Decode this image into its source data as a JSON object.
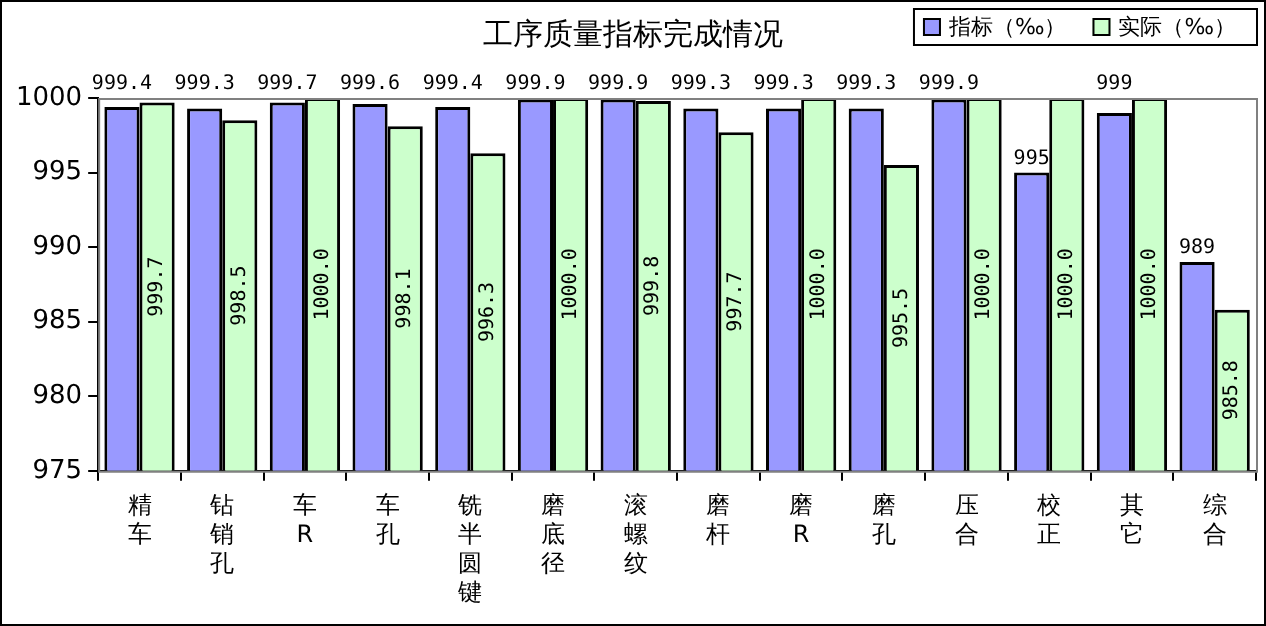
{
  "chart_data": {
    "type": "bar",
    "title": "工序质量指标完成情况",
    "categories": [
      "精车",
      "钻销孔",
      "车R",
      "车孔",
      "铣半圆键",
      "磨底径",
      "滚螺纹",
      "磨杆",
      "磨R",
      "磨孔",
      "压合",
      "校正",
      "其它",
      "综合"
    ],
    "series": [
      {
        "name": "指标（‰）",
        "color": "#9999ff",
        "values": [
          999.4,
          999.3,
          999.7,
          999.6,
          999.4,
          999.9,
          999.9,
          999.3,
          999.3,
          999.3,
          999.9,
          995,
          999,
          989
        ],
        "value_labels": [
          "999.4",
          "999.3",
          "999.7",
          "999.6",
          "999.4",
          "999.9",
          "999.9",
          "999.3",
          "999.3",
          "999.3",
          "999.9",
          "995",
          "999",
          "989"
        ]
      },
      {
        "name": "实际（‰）",
        "color": "#ccffcc",
        "values": [
          999.7,
          998.5,
          1000.0,
          998.1,
          996.3,
          1000.0,
          999.8,
          997.7,
          1000.0,
          995.5,
          1000.0,
          1000.0,
          1000.0,
          985.8
        ],
        "value_labels": [
          "999.7",
          "998.5",
          "1000.0",
          "998.1",
          "996.3",
          "1000.0",
          "999.8",
          "997.7",
          "1000.0",
          "995.5",
          "1000.0",
          "1000.0",
          "1000.0",
          "985.8"
        ]
      }
    ],
    "ylim": [
      975,
      1000
    ],
    "yticks": [
      975,
      980,
      985,
      990,
      995,
      1000
    ],
    "grid": false,
    "legend": "top right"
  }
}
